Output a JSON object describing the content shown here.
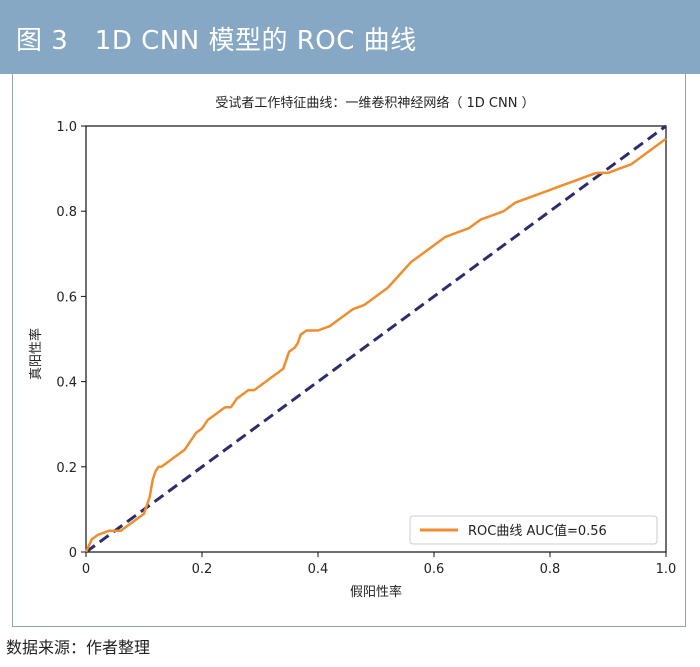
{
  "header": {
    "title": "图 3　1D CNN 模型的 ROC 曲线"
  },
  "footer": {
    "source": "数据来源：作者整理"
  },
  "colors": {
    "header_bg": "#86a8c4",
    "roc": "#f08d2e",
    "diagonal": "#2d2c6e"
  },
  "chart_data": {
    "type": "line",
    "title": "受试者工作特征曲线：一维卷积神经网络（ 1D CNN ）",
    "xlabel": "假阳性率",
    "ylabel": "真阳性率",
    "xlim": [
      0,
      1
    ],
    "ylim": [
      0,
      1
    ],
    "xticks": [
      "0",
      "0.2",
      "0.4",
      "0.6",
      "0.8",
      "1.0"
    ],
    "yticks": [
      "0",
      "0.2",
      "0.4",
      "0.6",
      "0.8",
      "1.0"
    ],
    "legend_position": "lower-right",
    "legend_label": "ROC曲线 AUC值=0.56",
    "series": [
      {
        "name": "ROC曲线 AUC值=0.56",
        "x": [
          0,
          0.01,
          0.02,
          0.04,
          0.06,
          0.07,
          0.08,
          0.1,
          0.11,
          0.115,
          0.12,
          0.125,
          0.13,
          0.14,
          0.15,
          0.16,
          0.17,
          0.18,
          0.19,
          0.2,
          0.205,
          0.21,
          0.22,
          0.23,
          0.24,
          0.25,
          0.26,
          0.27,
          0.28,
          0.29,
          0.3,
          0.31,
          0.32,
          0.33,
          0.34,
          0.35,
          0.36,
          0.365,
          0.37,
          0.38,
          0.39,
          0.4,
          0.42,
          0.44,
          0.46,
          0.48,
          0.5,
          0.52,
          0.54,
          0.56,
          0.58,
          0.6,
          0.62,
          0.64,
          0.66,
          0.68,
          0.7,
          0.72,
          0.74,
          0.76,
          0.78,
          0.8,
          0.82,
          0.84,
          0.86,
          0.88,
          0.9,
          0.92,
          0.94,
          0.96,
          0.98,
          1.0
        ],
        "y": [
          0,
          0.03,
          0.04,
          0.05,
          0.05,
          0.06,
          0.07,
          0.09,
          0.13,
          0.17,
          0.19,
          0.2,
          0.2,
          0.21,
          0.22,
          0.23,
          0.24,
          0.26,
          0.28,
          0.29,
          0.3,
          0.31,
          0.32,
          0.33,
          0.34,
          0.34,
          0.36,
          0.37,
          0.38,
          0.38,
          0.39,
          0.4,
          0.41,
          0.42,
          0.43,
          0.47,
          0.48,
          0.49,
          0.51,
          0.52,
          0.52,
          0.52,
          0.53,
          0.55,
          0.57,
          0.58,
          0.6,
          0.62,
          0.65,
          0.68,
          0.7,
          0.72,
          0.74,
          0.75,
          0.76,
          0.78,
          0.79,
          0.8,
          0.82,
          0.83,
          0.84,
          0.85,
          0.86,
          0.87,
          0.88,
          0.89,
          0.89,
          0.9,
          0.91,
          0.93,
          0.95,
          0.97
        ]
      },
      {
        "name": "",
        "x": [
          0,
          1
        ],
        "y": [
          0,
          1
        ],
        "style": "dashed"
      }
    ]
  }
}
